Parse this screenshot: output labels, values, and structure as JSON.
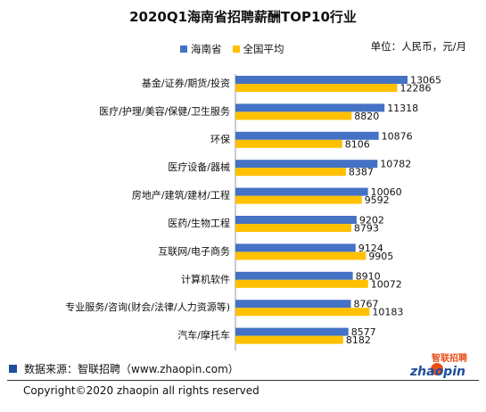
{
  "chart_data": {
    "type": "bar",
    "orientation": "horizontal",
    "title": "2020Q1海南省招聘薪酬TOP10行业",
    "unit_label": "单位：人民币，元/月",
    "categories": [
      "基金/证券/期货/投资",
      "医疗/护理/美容/保健/卫生服务",
      "环保",
      "医疗设备/器械",
      "房地产/建筑/建材/工程",
      "医药/生物工程",
      "互联网/电子商务",
      "计算机软件",
      "专业服务/咨询(财会/法律/人力资源等)",
      "汽车/摩托车"
    ],
    "series": [
      {
        "name": "海南省",
        "color": "#4472c4",
        "values": [
          13065,
          11318,
          10876,
          10782,
          10060,
          9202,
          9124,
          8910,
          8767,
          8577
        ]
      },
      {
        "name": "全国平均",
        "color": "#ffc000",
        "values": [
          12286,
          8820,
          8106,
          8387,
          9592,
          8793,
          9905,
          10072,
          10183,
          8182
        ]
      }
    ],
    "xlim": [
      0,
      14000
    ],
    "grid": false,
    "legend_position": "top-left"
  },
  "footer": {
    "source": "数据来源：智联招聘（www.zhaopin.com）",
    "logo_text": "zhaopin",
    "logo_brand": "智联招聘",
    "copyright": "Copyright©2020 zhaopin all rights reserved"
  }
}
